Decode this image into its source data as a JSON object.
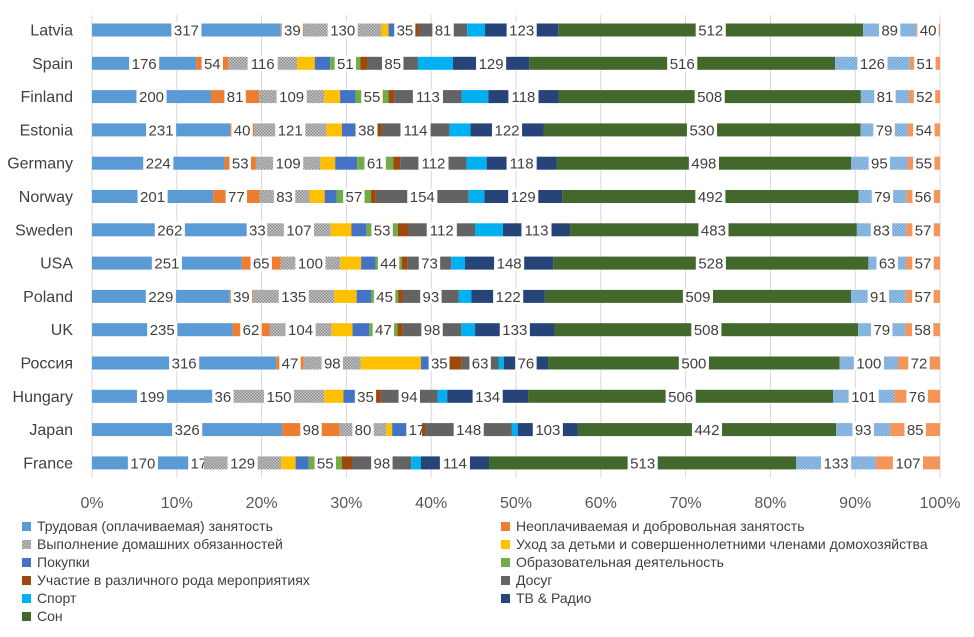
{
  "chart_data": {
    "type": "bar",
    "orientation": "horizontal",
    "stacked": "percent",
    "title": "",
    "xlabel": "",
    "ylabel": "",
    "xlim": [
      0,
      100
    ],
    "x_ticks": [
      "0%",
      "10%",
      "20%",
      "30%",
      "40%",
      "50%",
      "60%",
      "70%",
      "80%",
      "90%",
      "100%"
    ],
    "grid": "vertical",
    "legend_position": "bottom",
    "categories": [
      "Latvia",
      "Spain",
      "Finland",
      "Estonia",
      "Germany",
      "Norway",
      "Sweden",
      "USA",
      "Poland",
      "UK",
      "Россия",
      "Hungary",
      "Japan",
      "France"
    ],
    "series": [
      {
        "name": "Трудовая (оплачиваемая) занятость",
        "color": "#5b9bd5",
        "pattern": "solid",
        "labeled": true,
        "values": [
          317,
          176,
          200,
          231,
          224,
          201,
          262,
          251,
          229,
          235,
          316,
          199,
          326,
          170
        ]
      },
      {
        "name": "Неоплачиваемая и добровольная занятость",
        "color": "#ed7d31",
        "pattern": "solid",
        "labeled": true,
        "values": [
          39,
          54,
          81,
          40,
          53,
          77,
          33,
          65,
          39,
          62,
          47,
          36,
          98,
          17
        ]
      },
      {
        "name": "Выполнение домашних обязанностей",
        "color": "#a5a5a5",
        "pattern": "hatched",
        "labeled": true,
        "values": [
          130,
          116,
          109,
          121,
          109,
          83,
          107,
          100,
          135,
          104,
          98,
          150,
          80,
          129
        ]
      },
      {
        "name": "Уход за детьми и совершеннолетними членами домохозяйства",
        "color": "#ffc000",
        "pattern": "solid",
        "labeled": false,
        "values": [
          12,
          30,
          27,
          26,
          25,
          25,
          35,
          35,
          37,
          35,
          103,
          32,
          10,
          24
        ]
      },
      {
        "name": "Покупки",
        "color": "#4472c4",
        "pattern": "solid",
        "labeled": false,
        "values": [
          10,
          26,
          26,
          22,
          37,
          20,
          25,
          24,
          24,
          28,
          14,
          19,
          34,
          22
        ]
      },
      {
        "name": "Образовательная деятельность",
        "color": "#70ad47",
        "pattern": "solid",
        "labeled": true,
        "values": [
          35,
          51,
          55,
          38,
          61,
          57,
          53,
          44,
          45,
          47,
          35,
          35,
          17,
          55
        ]
      },
      {
        "name": "Участие в различного рода мероприятиях",
        "color": "#9e480e",
        "pattern": "solid",
        "labeled": false,
        "values": [
          6,
          12,
          10,
          6,
          12,
          8,
          18,
          10,
          8,
          9,
          21,
          8,
          6,
          18
        ]
      },
      {
        "name": "Досуг",
        "color": "#636363",
        "pattern": "solid",
        "labeled": true,
        "values": [
          81,
          85,
          113,
          114,
          112,
          154,
          112,
          73,
          93,
          98,
          63,
          94,
          148,
          98
        ]
      },
      {
        "name": "Спорт",
        "color": "#00b0f0",
        "pattern": "solid",
        "labeled": false,
        "values": [
          30,
          59,
          45,
          35,
          34,
          26,
          47,
          23,
          21,
          23,
          9,
          16,
          10,
          16
        ]
      },
      {
        "name": "ТВ & Радио",
        "color": "#264478",
        "pattern": "solid",
        "labeled": true,
        "values": [
          123,
          129,
          118,
          122,
          118,
          129,
          113,
          148,
          122,
          133,
          76,
          134,
          103,
          114
        ]
      },
      {
        "name": "Сон",
        "color": "#43682b",
        "pattern": "solid",
        "labeled": true,
        "values": [
          512,
          516,
          508,
          530,
          498,
          492,
          483,
          528,
          509,
          508,
          500,
          506,
          442,
          513
        ]
      },
      {
        "name": "series-12",
        "color": "#5b9bd5",
        "pattern": "hatched",
        "labeled": true,
        "values": [
          89,
          126,
          81,
          79,
          95,
          79,
          83,
          63,
          91,
          79,
          100,
          101,
          93,
          133
        ]
      },
      {
        "name": "series-13",
        "color": "#f4955a",
        "pattern": "solid",
        "labeled": true,
        "values": [
          40,
          51,
          52,
          54,
          55,
          56,
          57,
          57,
          57,
          58,
          72,
          76,
          85,
          107
        ]
      }
    ]
  }
}
